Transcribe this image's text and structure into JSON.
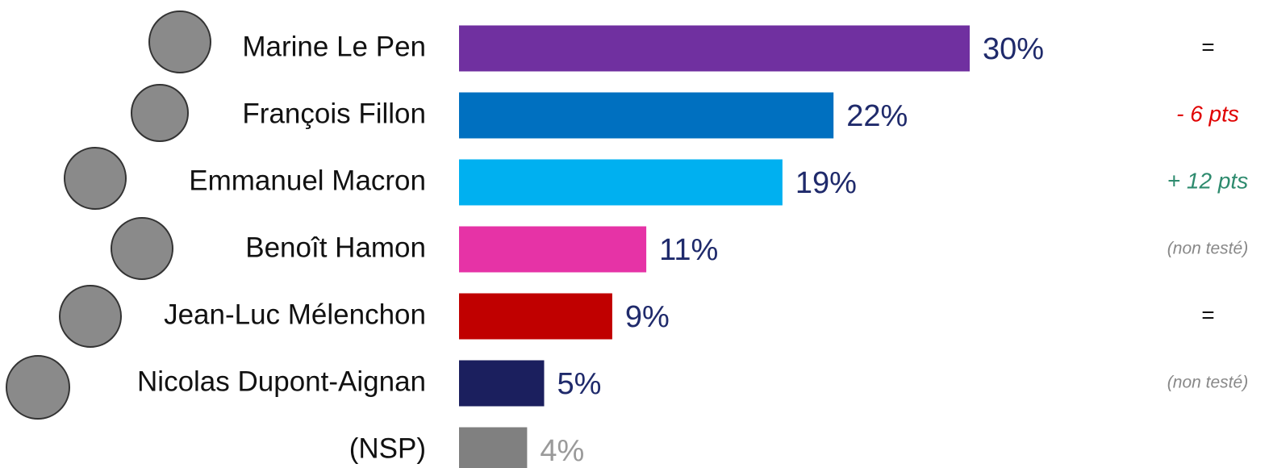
{
  "chart_data": {
    "type": "bar",
    "orientation": "horizontal",
    "categories": [
      "Marine Le Pen",
      "François Fillon",
      "Emmanuel Macron",
      "Benoît Hamon",
      "Jean-Luc Mélenchon",
      "Nicolas Dupont-Aignan",
      "(NSP)"
    ],
    "values": [
      30,
      22,
      19,
      11,
      9,
      5,
      4
    ],
    "value_labels": [
      "30%",
      "22%",
      "19%",
      "11%",
      "9%",
      "5%",
      "4%"
    ],
    "colors": [
      "#7030a0",
      "#0070c0",
      "#00b0f0",
      "#e633a6",
      "#c00000",
      "#1b1f5e",
      "#808080"
    ],
    "value_label_colors": [
      "#1f2a6b",
      "#1f2a6b",
      "#1f2a6b",
      "#1f2a6b",
      "#1f2a6b",
      "#1f2a6b",
      "#9a9a9a"
    ],
    "annotations": [
      "=",
      "- 6 pts",
      "+ 12 pts",
      "(non testé)",
      "=",
      "(non testé)",
      null
    ],
    "annotation_colors": [
      "#111111",
      "#e00000",
      "#2e8b6e",
      "#888888",
      "#111111",
      "#888888",
      null
    ]
  }
}
